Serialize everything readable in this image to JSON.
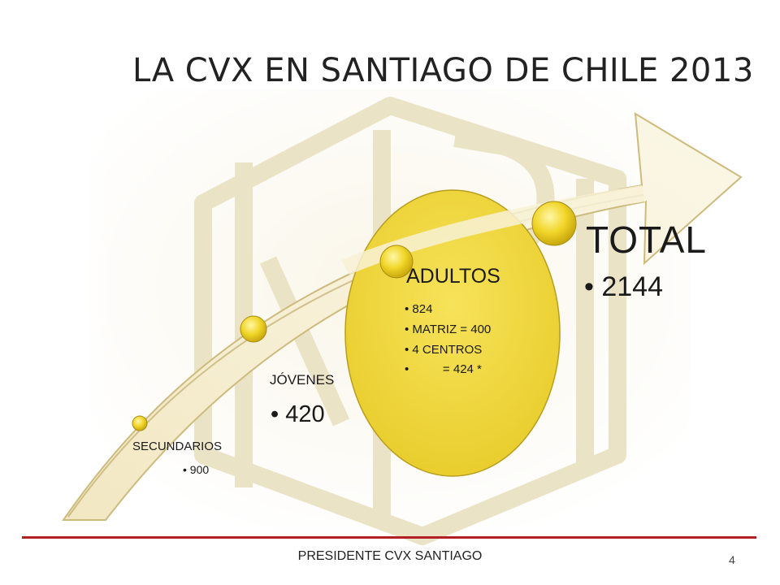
{
  "title": "LA CVX EN SANTIAGO DE CHILE 2013",
  "stages": {
    "secundarios": {
      "label": "SECUNDARIOS",
      "value": "•  900"
    },
    "jovenes": {
      "label": "JÓVENES",
      "value": "•  420"
    },
    "adultos": {
      "label": "ADULTOS",
      "items": [
        "•  824",
        "•  MATRIZ  =  400",
        "•  4 CENTROS",
        "•          = 424 *"
      ]
    },
    "total": {
      "label": "TOTAL",
      "value": "• 2144"
    }
  },
  "footer": {
    "text": "PRESIDENTE CVX SANTIAGO",
    "page": "4"
  },
  "colors": {
    "circle": "#efd63c",
    "arrow_light": "#f7f0d2",
    "arrow_dark": "#d7c890",
    "rule": "#b21f24",
    "watermark": "#d9ca95"
  }
}
